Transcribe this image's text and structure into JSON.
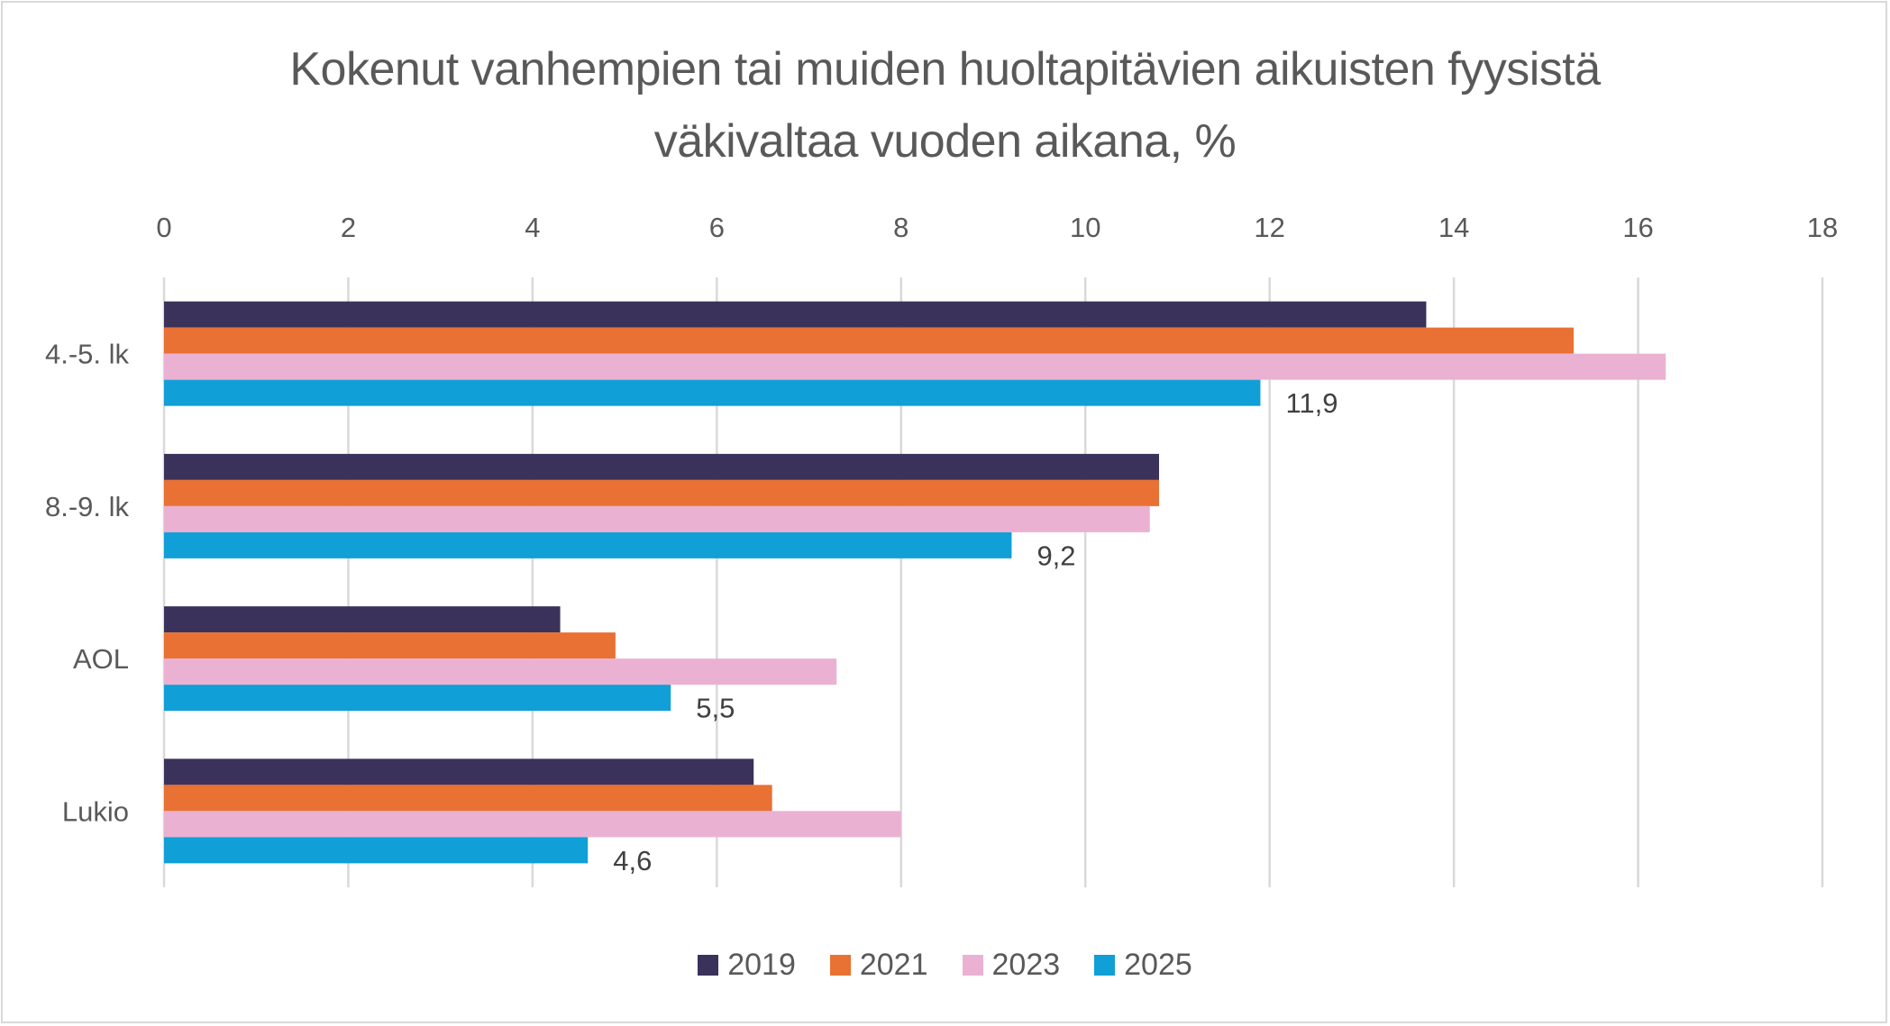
{
  "chart_data": {
    "type": "bar",
    "orientation": "horizontal",
    "title": "Kokenut vanhempien tai muiden huoltapitävien aikuisten fyysistä väkivaltaa vuoden aikana, %",
    "title_lines": [
      "Kokenut vanhempien tai muiden huoltapitävien aikuisten fyysistä",
      "väkivaltaa vuoden aikana, %"
    ],
    "xlabel": "",
    "ylabel": "",
    "xlim": [
      0,
      18
    ],
    "x_ticks": [
      0,
      2,
      4,
      6,
      8,
      10,
      12,
      14,
      16,
      18
    ],
    "x_tick_labels": [
      "0",
      "2",
      "4",
      "6",
      "8",
      "10",
      "12",
      "14",
      "16",
      "18"
    ],
    "x_axis_position": "top",
    "grid": true,
    "categories": [
      "4.-5. lk",
      "8.-9. lk",
      "AOL",
      "Lukio"
    ],
    "series": [
      {
        "name": "2019",
        "color": "#3a325a",
        "values": [
          13.7,
          10.8,
          4.3,
          6.4
        ],
        "show_labels": false
      },
      {
        "name": "2021",
        "color": "#e87133",
        "values": [
          15.3,
          10.8,
          4.9,
          6.6
        ],
        "show_labels": false
      },
      {
        "name": "2023",
        "color": "#ebb1d2",
        "values": [
          16.3,
          10.7,
          7.3,
          8.0
        ],
        "show_labels": false
      },
      {
        "name": "2025",
        "color": "#109fd6",
        "values": [
          11.9,
          9.2,
          5.5,
          4.6
        ],
        "show_labels": true
      }
    ],
    "data_labels": {
      "2025": [
        "11,9",
        "9,2",
        "5,5",
        "4,6"
      ]
    },
    "legend": {
      "position": "bottom",
      "entries": [
        "2019",
        "2021",
        "2023",
        "2025"
      ]
    }
  }
}
